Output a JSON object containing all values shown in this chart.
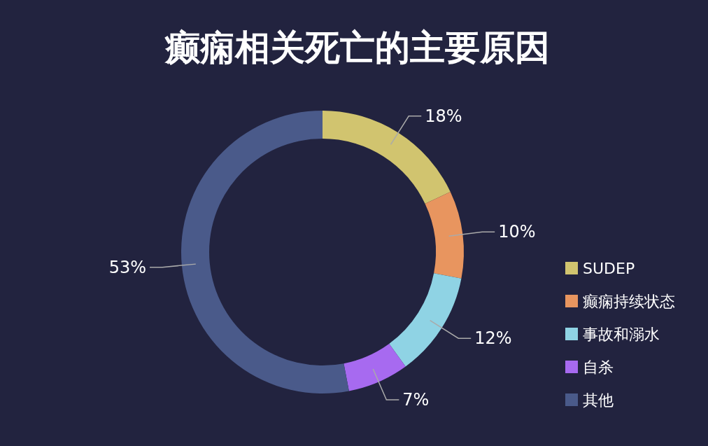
{
  "chart_data": {
    "type": "donut",
    "title": "癫痫相关死亡的主要原因",
    "categories": [
      "SUDEP",
      "癫痫持续状态",
      "事故和溺水",
      "自杀",
      "其他"
    ],
    "values": [
      18,
      10,
      12,
      7,
      53
    ],
    "colors": [
      "#d1c46f",
      "#e8955f",
      "#8fd3e4",
      "#a76af0",
      "#4a5a8a"
    ],
    "value_labels": [
      "18%",
      "10%",
      "12%",
      "7%",
      "53%"
    ],
    "legend": "right"
  }
}
